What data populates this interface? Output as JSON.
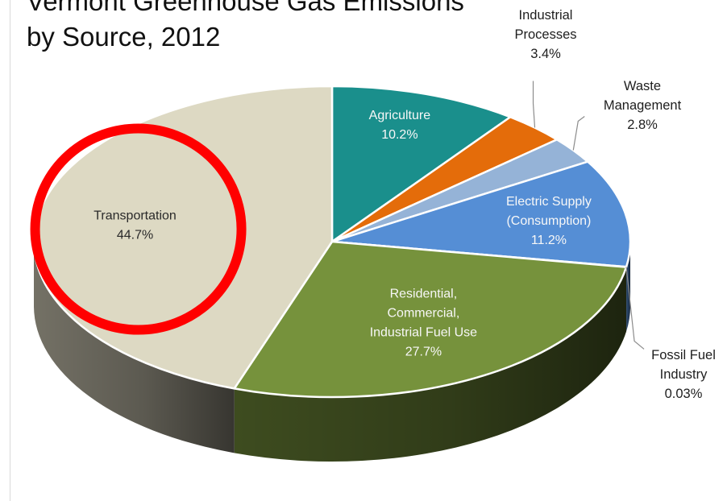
{
  "chart_data": {
    "type": "pie",
    "title_lines": [
      "Vermont Greenhouse Gas Emissions",
      "by Source, 2012"
    ],
    "slices": [
      {
        "label_lines": [
          "Agriculture"
        ],
        "value_text": "10.2%",
        "value": 10.2,
        "color": "#1a8f8c"
      },
      {
        "label_lines": [
          "Industrial",
          "Processes"
        ],
        "value_text": "3.4%",
        "value": 3.4,
        "color": "#e46c0a"
      },
      {
        "label_lines": [
          "Waste",
          "Management"
        ],
        "value_text": "2.8%",
        "value": 2.8,
        "color": "#95b3d7"
      },
      {
        "label_lines": [
          "Electric Supply",
          "(Consumption)"
        ],
        "value_text": "11.2%",
        "value": 11.2,
        "color": "#558ed5"
      },
      {
        "label_lines": [
          "Fossil Fuel",
          "Industry"
        ],
        "value_text": "0.03%",
        "value": 0.03,
        "color": "#3b5a8a"
      },
      {
        "label_lines": [
          "Residential,",
          "Commercial,",
          "Industrial Fuel Use"
        ],
        "value_text": "27.7%",
        "value": 27.7,
        "color": "#76923c"
      },
      {
        "label_lines": [
          "Transportation"
        ],
        "value_text": "44.7%",
        "value": 44.7,
        "color": "#ddd9c3"
      }
    ],
    "highlight": {
      "slice": "Transportation",
      "shape": "circle",
      "color": "#ff0000"
    }
  }
}
